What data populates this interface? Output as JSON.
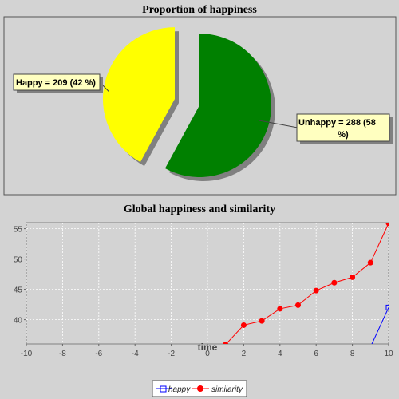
{
  "chart_data": [
    {
      "type": "pie",
      "title": "Proportion of happiness",
      "slices": [
        {
          "name": "Unhappy",
          "value": 288,
          "label": "Unhappy = 288 (58 %)",
          "label_line1": "Unhappy = 288 (58",
          "label_line2": "%)",
          "color": "#008000",
          "exploded": false
        },
        {
          "name": "Happy",
          "value": 209,
          "label": "Happy = 209 (42 %)",
          "color": "#ffff00",
          "exploded": true
        }
      ]
    },
    {
      "type": "line",
      "title": "Global happiness and similarity",
      "xlabel": "time",
      "ylabel": "",
      "xlim": [
        -10,
        10
      ],
      "ylim": [
        36,
        56
      ],
      "xticks": [
        -10,
        -8,
        -6,
        -4,
        -2,
        0,
        2,
        4,
        6,
        8,
        10
      ],
      "yticks": [
        40,
        45,
        50,
        55
      ],
      "grid": true,
      "legend": "bottom-center",
      "series": [
        {
          "name": "happy",
          "color": "#0000ff",
          "marker": "square",
          "x": [
            9,
            10
          ],
          "y": [
            35.5,
            42
          ]
        },
        {
          "name": "similarity",
          "color": "#ff0000",
          "marker": "circle",
          "x": [
            1,
            2,
            3,
            4,
            5,
            6,
            7,
            8,
            9,
            10
          ],
          "y": [
            35.9,
            39.1,
            39.8,
            41.8,
            42.4,
            44.8,
            46.1,
            47.0,
            49.4,
            55.9
          ]
        }
      ]
    }
  ]
}
